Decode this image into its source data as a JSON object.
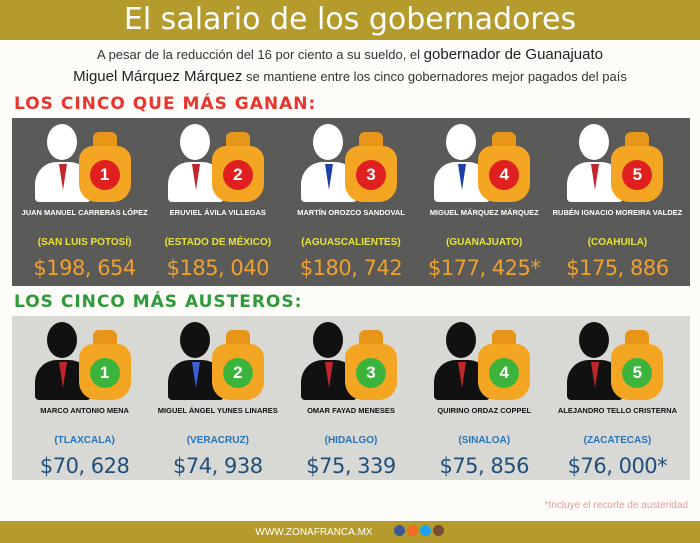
{
  "title": "El salario de los gobernadores",
  "subtitle": {
    "line1_pre": "A pesar de la reducción del 16 por ciento a su sueldo, el ",
    "line1_em": "gobernador de Guanajuato",
    "line2_em": "Miguel Márquez Márquez",
    "line2_post": " se mantiene entre los cinco gobernadores mejor pagados del país"
  },
  "top": {
    "heading": "LOS CINCO QUE MÁS GANAN:",
    "color": "#e8352e",
    "items": [
      {
        "rank": "1",
        "name": "JUAN MANUEL CARRERAS LÓPEZ",
        "state": "(SAN LUIS POTOSÍ)",
        "salary": "$198, 654"
      },
      {
        "rank": "2",
        "name": "ERUVIEL ÁVILA VILLEGAS",
        "state": "(ESTADO DE MÉXICO)",
        "salary": "$185, 040"
      },
      {
        "rank": "3",
        "name": "MARTÍN OROZCO SANDOVAL",
        "state": "(AGUASCALIENTES)",
        "salary": "$180, 742"
      },
      {
        "rank": "4",
        "name": "MIGUEL MÁRQUEZ MÁRQUEZ",
        "state": "(GUANAJUATO)",
        "salary": "$177, 425*"
      },
      {
        "rank": "5",
        "name": "RUBÉN IGNACIO MOREIRA VALDEZ",
        "state": "(COAHUILA)",
        "salary": "$175, 886"
      }
    ]
  },
  "bottom": {
    "heading": "LOS CINCO MÁS AUSTEROS:",
    "color": "#2e9a3a",
    "items": [
      {
        "rank": "1",
        "name": "MARCO ANTONIO MENA",
        "state": "(TLAXCALA)",
        "salary": "$70, 628"
      },
      {
        "rank": "2",
        "name": "MIGUEL ÁNGEL YUNES LINARES",
        "state": "(VERACRUZ)",
        "salary": "$74, 938"
      },
      {
        "rank": "3",
        "name": "OMAR FAYAD MENESES",
        "state": "(HIDALGO)",
        "salary": "$75, 339"
      },
      {
        "rank": "4",
        "name": "QUIRINO ORDAZ COPPEL",
        "state": "(SINALOA)",
        "salary": "$75, 856"
      },
      {
        "rank": "5",
        "name": "ALEJANDRO TELLO CRISTERNA",
        "state": "(ZACATECAS)",
        "salary": "$76, 000*"
      }
    ]
  },
  "footnote": "*Incluye el recorte de austeridad",
  "footer": {
    "url": "WWW.ZONAFRANCA.MX",
    "social_icons": [
      "facebook-icon",
      "soundcloud-icon",
      "twitter-icon",
      "instagram-icon"
    ]
  }
}
